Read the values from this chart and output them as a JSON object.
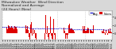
{
  "title": "Milwaukee Weather  Wind Direction\nNormalized and Average\n(24 Hours) (New)",
  "bg_color": "#d8d8d8",
  "plot_bg_color": "#ffffff",
  "bar_color": "#dd0000",
  "avg_color": "#0000cc",
  "ylim": [
    -1.5,
    5.5
  ],
  "yticks": [
    0,
    2,
    4
  ],
  "n_points": 144,
  "seed": 7,
  "title_fontsize": 3.2,
  "tick_fontsize": 2.2,
  "legend_fontsize": 2.5,
  "grid_color": "#bbbbbb",
  "grid_positions": [
    0,
    36,
    72,
    108,
    143
  ]
}
